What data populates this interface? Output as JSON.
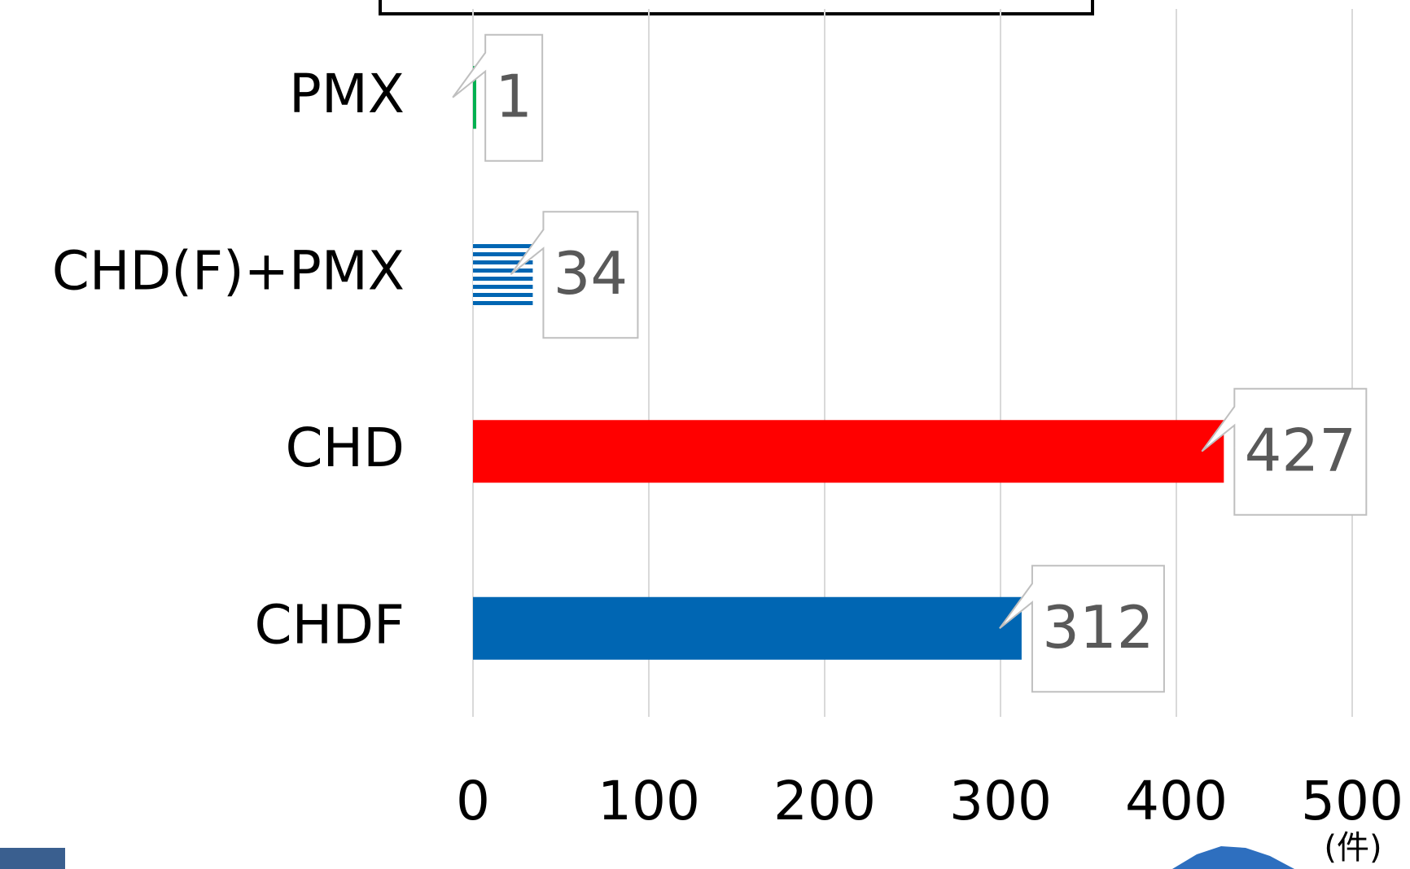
{
  "chart_data": {
    "type": "barh",
    "categories": [
      "PMX",
      "CHD(F)+PMX",
      "CHD",
      "CHDF"
    ],
    "values": [
      1,
      34,
      427,
      312
    ],
    "colors": [
      "#00b050",
      "#0066b3",
      "#ff0000",
      "#0066b3"
    ],
    "hatched": [
      false,
      true,
      false,
      false
    ],
    "xlim": [
      0,
      500
    ],
    "xticks": [
      0,
      100,
      200,
      300,
      400,
      500
    ],
    "x_unit_label": "(件)",
    "grid": true
  }
}
